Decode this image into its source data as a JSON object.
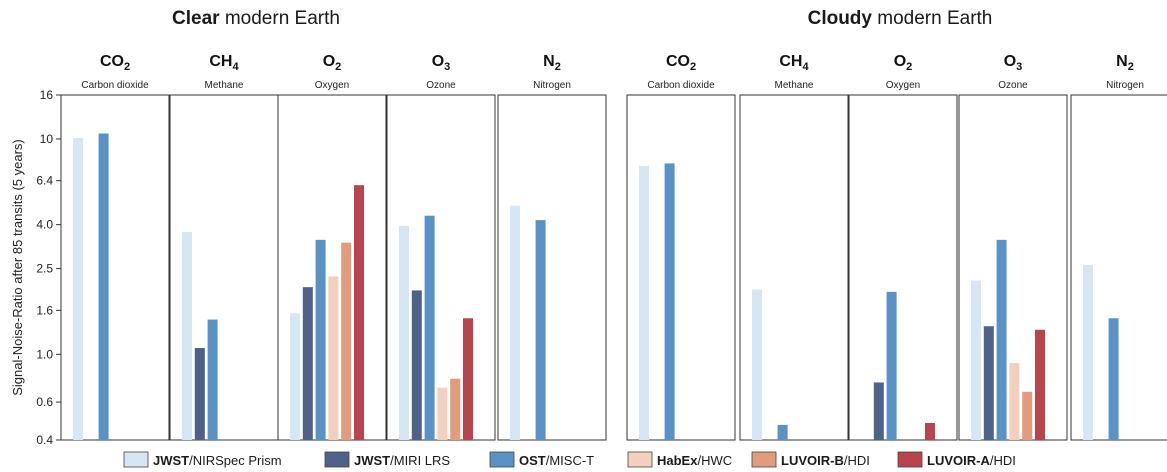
{
  "chart_data": {
    "type": "bar",
    "ylabel": "Signal-Noise-Ratio after 85 transits (5 years)",
    "yscale": "log",
    "ylim": [
      0.4,
      16
    ],
    "yticks": [
      "16",
      "10",
      "6.4",
      "4.0",
      "2.5",
      "1.6",
      "1.0",
      "0.6",
      "0.4"
    ],
    "yticks_values": [
      16,
      10,
      6.4,
      4.0,
      2.5,
      1.6,
      1.0,
      0.6,
      0.4
    ],
    "grid": false,
    "legend_position": "bottom",
    "instruments": [
      {
        "key": "jwst_nirspec",
        "bold": "JWST",
        "rest": "/NIRSpec Prism",
        "color": "#d6e6f4"
      },
      {
        "key": "jwst_miri",
        "bold": "JWST",
        "rest": "/MIRI LRS",
        "color": "#4e6288"
      },
      {
        "key": "ost",
        "bold": "OST",
        "rest": "/MISC-T",
        "color": "#5b92c6"
      },
      {
        "key": "habex",
        "bold": "HabEx",
        "rest": "/HWC",
        "color": "#f3cfbd"
      },
      {
        "key": "luvoir_b",
        "bold": "LUVOIR-B",
        "rest": "/HDI",
        "color": "#e09c7c"
      },
      {
        "key": "luvoir_a",
        "bold": "LUVOIR-A",
        "rest": "/HDI",
        "color": "#b9444d"
      }
    ],
    "groups": [
      {
        "title_bold": "Clear",
        "title_rest": " modern Earth",
        "panels": [
          {
            "mol": "CO",
            "sub": "2",
            "name": "Carbon dioxide",
            "values": [
              10.1,
              null,
              10.6,
              null,
              null,
              null
            ]
          },
          {
            "mol": "CH",
            "sub": "4",
            "name": "Methane",
            "values": [
              3.7,
              1.07,
              1.45,
              null,
              null,
              null
            ]
          },
          {
            "mol": "O",
            "sub": "2",
            "name": "Oxygen",
            "values": [
              1.55,
              2.05,
              3.4,
              2.3,
              3.3,
              6.1
            ]
          },
          {
            "mol": "O",
            "sub": "3",
            "name": "Ozone",
            "values": [
              3.95,
              1.98,
              4.4,
              0.7,
              0.77,
              1.47
            ]
          },
          {
            "mol": "N",
            "sub": "2",
            "name": "Nitrogen",
            "values": [
              4.9,
              null,
              4.2,
              null,
              null,
              null
            ]
          }
        ]
      },
      {
        "title_bold": "Cloudy",
        "title_rest": " modern Earth",
        "panels": [
          {
            "mol": "CO",
            "sub": "2",
            "name": "Carbon dioxide",
            "values": [
              7.5,
              null,
              7.7,
              null,
              null,
              null
            ]
          },
          {
            "mol": "CH",
            "sub": "4",
            "name": "Methane",
            "values": [
              2.0,
              null,
              0.47,
              null,
              null,
              null
            ]
          },
          {
            "mol": "O",
            "sub": "2",
            "name": "Oxygen",
            "values": [
              null,
              0.74,
              1.95,
              null,
              null,
              0.48
            ]
          },
          {
            "mol": "O",
            "sub": "3",
            "name": "Ozone",
            "values": [
              2.2,
              1.35,
              3.4,
              0.91,
              0.67,
              1.3
            ]
          },
          {
            "mol": "N",
            "sub": "2",
            "name": "Nitrogen",
            "values": [
              2.6,
              null,
              1.47,
              null,
              null,
              null
            ]
          }
        ]
      }
    ]
  }
}
